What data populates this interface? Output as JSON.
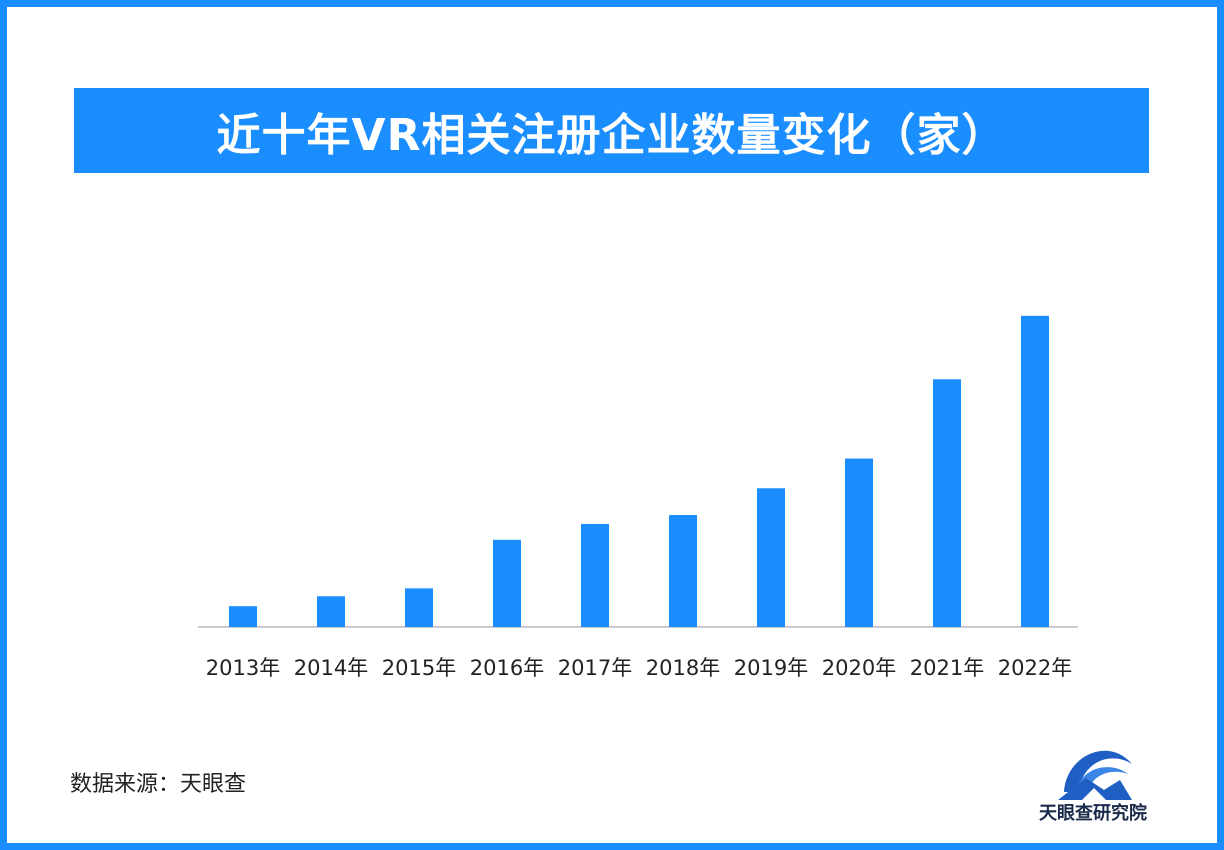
{
  "title": "近十年VR相关注册企业数量变化（家）",
  "source": "数据来源：天眼查",
  "logo_text": "天眼查研究院",
  "colors": {
    "accent": "#1a8dff",
    "bar": "#1a8dff",
    "axis": "#cccccc",
    "text": "#222222"
  },
  "chart_data": {
    "type": "bar",
    "title": "近十年VR相关注册企业数量变化（家）",
    "categories": [
      "2013年",
      "2014年",
      "2015年",
      "2016年",
      "2017年",
      "2018年",
      "2019年",
      "2020年",
      "2021年",
      "2022年"
    ],
    "values": [
      21,
      31,
      39,
      88,
      104,
      113,
      140,
      170,
      250,
      314
    ],
    "ylim": [
      0,
      330
    ],
    "xlabel": "",
    "ylabel": "",
    "grid": false,
    "legend": "none",
    "note": "values are relative estimates; no y-axis or data labels shown"
  }
}
